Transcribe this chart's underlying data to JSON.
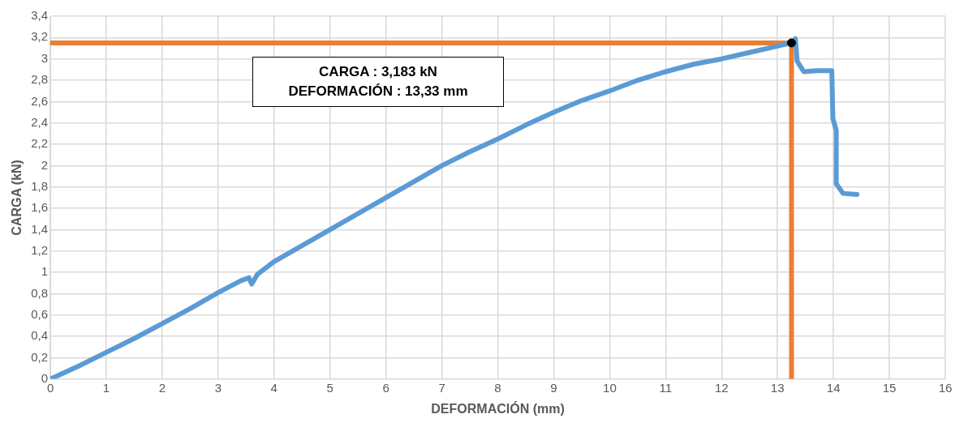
{
  "chart_data": {
    "type": "line",
    "xlabel": "DEFORMACIÓN (mm)",
    "ylabel": "CARGA (kN)",
    "annotations": [
      "CARGA : 3,183 kN\nDEFORMACIÓN : 13,33 mm"
    ],
    "series": [
      {
        "type": "line",
        "color": "#5b9bd5",
        "x": [
          0,
          0.5,
          1,
          1.5,
          2,
          2.5,
          3,
          3.4,
          3.55,
          3.6,
          3.7,
          4,
          4.5,
          5,
          5.5,
          6,
          6.5,
          7,
          7.5,
          8,
          8.5,
          9,
          9.5,
          10,
          10.5,
          11,
          11.5,
          12,
          12.5,
          13,
          13.25,
          13.32,
          13.35,
          13.47,
          13.7,
          13.97,
          13.99,
          14.05,
          14.05,
          14.17,
          14.42
        ],
        "values": [
          0,
          0.12,
          0.25,
          0.38,
          0.52,
          0.66,
          0.81,
          0.92,
          0.95,
          0.89,
          0.98,
          1.1,
          1.25,
          1.4,
          1.55,
          1.7,
          1.85,
          2.0,
          2.13,
          2.25,
          2.38,
          2.5,
          2.61,
          2.7,
          2.8,
          2.88,
          2.95,
          3.0,
          3.06,
          3.12,
          3.15,
          3.19,
          2.98,
          2.88,
          2.89,
          2.89,
          2.44,
          2.33,
          1.83,
          1.74,
          1.73
        ]
      },
      {
        "type": "line",
        "color": "#ed7d31",
        "x": [
          0,
          13.25,
          13.25
        ],
        "values": [
          3.15,
          3.15,
          0
        ]
      },
      {
        "type": "scatter",
        "color": "#000000",
        "marker": "circle",
        "x": [
          13.25
        ],
        "values": [
          3.15
        ]
      }
    ],
    "line_style": "solid",
    "xlim": [
      0,
      16
    ],
    "xticks": [
      0,
      1,
      2,
      3,
      4,
      5,
      6,
      7,
      8,
      9,
      10,
      11,
      12,
      13,
      14,
      15,
      16
    ],
    "ylim": [
      0,
      3.4
    ],
    "yticks": [
      0,
      {
        "value": 0.2,
        "label": "0,2"
      },
      {
        "value": 0.4,
        "label": "0,4"
      },
      {
        "value": 0.6,
        "label": "0,6"
      },
      {
        "value": 0.8,
        "label": "0,8"
      },
      1,
      {
        "value": 1.2,
        "label": "1,2"
      },
      {
        "value": 1.4,
        "label": "1,4"
      },
      {
        "value": 1.6,
        "label": "1,6"
      },
      {
        "value": 1.8,
        "label": "1,8"
      },
      2,
      {
        "value": 2.2,
        "label": "2,2"
      },
      {
        "value": 2.4,
        "label": "2,4"
      },
      {
        "value": 2.6,
        "label": "2,6"
      },
      {
        "value": 2.8,
        "label": "2,8"
      },
      3,
      {
        "value": 3.2,
        "label": "3,2"
      },
      {
        "value": 3.4,
        "label": "3,4"
      }
    ],
    "grid": true,
    "legend": false
  }
}
